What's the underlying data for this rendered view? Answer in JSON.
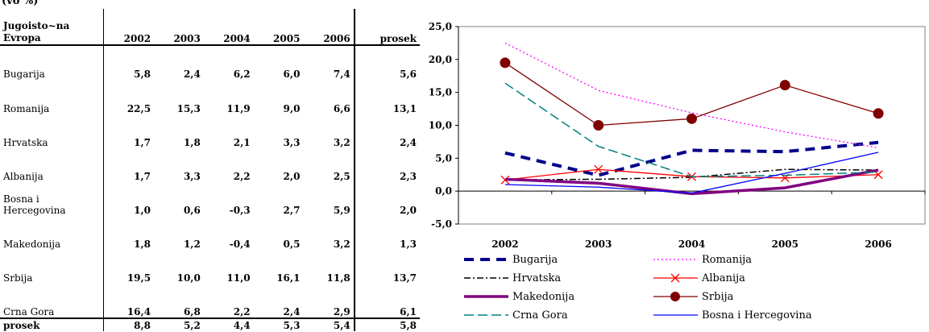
{
  "caption": "(vo %)",
  "table": {
    "header_name": "Jugoisto~na Evropa",
    "years": [
      "2002",
      "2003",
      "2004",
      "2005",
      "2006"
    ],
    "avg_label": "prosek",
    "rows": [
      {
        "name": "Bugarija",
        "values": [
          "5,8",
          "2,4",
          "6,2",
          "6,0",
          "7,4"
        ],
        "avg": "5,6"
      },
      {
        "name": "Romanija",
        "values": [
          "22,5",
          "15,3",
          "11,9",
          "9,0",
          "6,6"
        ],
        "avg": "13,1"
      },
      {
        "name": "Hrvatska",
        "values": [
          "1,7",
          "1,8",
          "2,1",
          "3,3",
          "3,2"
        ],
        "avg": "2,4"
      },
      {
        "name": "Albanija",
        "values": [
          "1,7",
          "3,3",
          "2,2",
          "2,0",
          "2,5"
        ],
        "avg": "2,3"
      },
      {
        "name": "Bosna i Hercegovina",
        "values": [
          "1,0",
          "0,6",
          "-0,3",
          "2,7",
          "5,9"
        ],
        "avg": "2,0"
      },
      {
        "name": "Makedonija",
        "values": [
          "1,8",
          "1,2",
          "-0,4",
          "0,5",
          "3,2"
        ],
        "avg": "1,3"
      },
      {
        "name": "Srbija",
        "values": [
          "19,5",
          "10,0",
          "11,0",
          "16,1",
          "11,8"
        ],
        "avg": "13,7"
      },
      {
        "name": "Crna Gora",
        "values": [
          "16,4",
          "6,8",
          "2,2",
          "2,4",
          "2,9"
        ],
        "avg": "6,1"
      }
    ],
    "total": {
      "name": "prosek",
      "values": [
        "8,8",
        "5,2",
        "4,4",
        "5,3",
        "5,4"
      ],
      "avg": "5,8"
    }
  },
  "chart_data": {
    "type": "line",
    "x": [
      "2002",
      "2003",
      "2004",
      "2005",
      "2006"
    ],
    "ylim": [
      -5,
      25
    ],
    "yticks": [
      "25,0",
      "20,0",
      "15,0",
      "10,0",
      "5,0",
      "0,0",
      "-5,0"
    ],
    "ytick_values": [
      25,
      20,
      15,
      10,
      5,
      0,
      -5
    ],
    "series": [
      {
        "name": "Bugarija",
        "values": [
          5.8,
          2.4,
          6.2,
          6.0,
          7.4
        ],
        "color": "#00008b",
        "style": "bold-dash"
      },
      {
        "name": "Romanija",
        "values": [
          22.5,
          15.3,
          11.9,
          9.0,
          6.6
        ],
        "color": "#ff00ff",
        "style": "dot"
      },
      {
        "name": "Hrvatska",
        "values": [
          1.7,
          1.8,
          2.1,
          3.3,
          3.2
        ],
        "color": "#000000",
        "style": "dash-dot"
      },
      {
        "name": "Albanija",
        "values": [
          1.7,
          3.3,
          2.2,
          2.0,
          2.5
        ],
        "color": "#ff0000",
        "style": "x-marker"
      },
      {
        "name": "Makedonija",
        "values": [
          1.8,
          1.2,
          -0.4,
          0.5,
          3.2
        ],
        "color": "#800080",
        "style": "thick"
      },
      {
        "name": "Srbija",
        "values": [
          19.5,
          10.0,
          11.0,
          16.1,
          11.8
        ],
        "color": "#800000",
        "style": "circle-marker"
      },
      {
        "name": "Crna Gora",
        "values": [
          16.4,
          6.8,
          2.2,
          2.4,
          2.9
        ],
        "color": "#008080",
        "style": "long-dash"
      },
      {
        "name": "Bosna i Hercegovina",
        "values": [
          1.0,
          0.6,
          -0.3,
          2.7,
          5.9
        ],
        "color": "#0000ff",
        "style": "solid"
      }
    ],
    "legend_position": "bottom"
  }
}
